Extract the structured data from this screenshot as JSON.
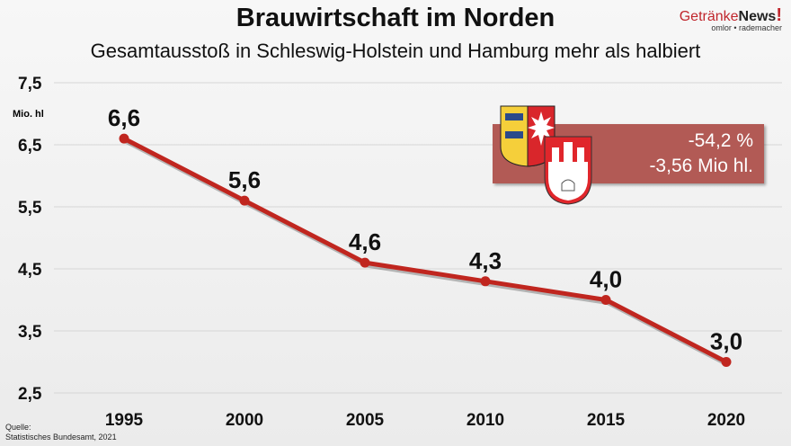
{
  "header": {
    "title": "Brauwirtschaft im Norden",
    "subtitle": "Gesamtausstoß in Schleswig-Holstein und Hamburg mehr als halbiert"
  },
  "logo": {
    "brand_part1": "Getränke",
    "brand_part2": "News",
    "brand_mark": "!",
    "tagline": "omlor • rademacher"
  },
  "source": {
    "line1": "Quelle:",
    "line2": "Statistisches Bundesamt, 2021"
  },
  "callout": {
    "percent": "-54,2 %",
    "absolute": "-3,56 Mio hl.",
    "color": "#b25a55",
    "icons": [
      "schleswig-holstein-coat-of-arms-icon",
      "hamburg-coat-of-arms-icon"
    ]
  },
  "chart_data": {
    "type": "line",
    "title": "Brauwirtschaft im Norden",
    "subtitle": "Gesamtausstoß in Schleswig-Holstein und Hamburg mehr als halbiert",
    "ylabel": "Mio. hl",
    "xlabel": "",
    "categories": [
      "1995",
      "2000",
      "2005",
      "2010",
      "2015",
      "2020"
    ],
    "values": [
      6.6,
      5.6,
      4.6,
      4.3,
      4.0,
      3.0
    ],
    "data_labels": [
      "6,6",
      "5,6",
      "4,6",
      "4,3",
      "4,0",
      "3,0"
    ],
    "ylim": [
      2.5,
      7.5
    ],
    "yticks": [
      "2,5",
      "3,5",
      "4,5",
      "5,5",
      "6,5",
      "7,5"
    ],
    "ytick_values": [
      2.5,
      3.5,
      4.5,
      5.5,
      6.5,
      7.5
    ],
    "grid": true,
    "line_color": "#c0261f"
  }
}
